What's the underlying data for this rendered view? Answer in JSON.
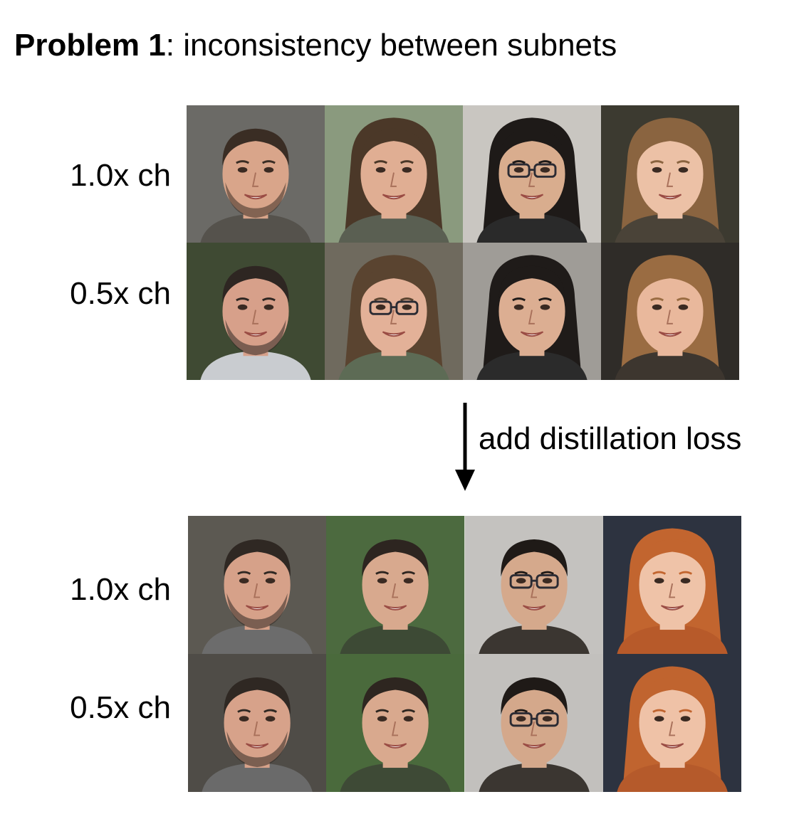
{
  "title": {
    "bold": "Problem 1",
    "rest": ": inconsistency between subnets"
  },
  "top_panel": {
    "rows": [
      {
        "label": "1.0x ch"
      },
      {
        "label": "0.5x ch"
      }
    ],
    "faces": [
      [
        {
          "bg": "#6b6a66",
          "skin": "#d9a58a",
          "hair": "#3a2d24",
          "shirt": "#55524c",
          "beard": true,
          "glasses": false,
          "longhair": false
        },
        {
          "bg": "#8a9a7e",
          "skin": "#e0ae93",
          "hair": "#4b3828",
          "shirt": "#5a5f52",
          "beard": false,
          "glasses": false,
          "longhair": true
        },
        {
          "bg": "#c9c6c1",
          "skin": "#d9ad8e",
          "hair": "#1e1a18",
          "shirt": "#2a2a2a",
          "beard": false,
          "glasses": true,
          "longhair": true
        },
        {
          "bg": "#3c3a30",
          "skin": "#ecc1a6",
          "hair": "#8a6440",
          "shirt": "#4a4338",
          "beard": false,
          "glasses": false,
          "longhair": true
        }
      ],
      [
        {
          "bg": "#3f4a33",
          "skin": "#d7a08a",
          "hair": "#2e2622",
          "shirt": "#c9ccd0",
          "beard": true,
          "glasses": false,
          "longhair": false
        },
        {
          "bg": "#6f6a5e",
          "skin": "#e3b198",
          "hair": "#5a4430",
          "shirt": "#5d6b55",
          "beard": false,
          "glasses": true,
          "longhair": true
        },
        {
          "bg": "#9f9c97",
          "skin": "#dcae92",
          "hair": "#1f1b19",
          "shirt": "#2b2b2b",
          "beard": false,
          "glasses": false,
          "longhair": true
        },
        {
          "bg": "#2f2c28",
          "skin": "#e9b89c",
          "hair": "#9a6c42",
          "shirt": "#3d362f",
          "beard": false,
          "glasses": false,
          "longhair": true
        }
      ]
    ]
  },
  "arrow_label": "add distillation loss",
  "bottom_panel": {
    "rows": [
      {
        "label": "1.0x ch"
      },
      {
        "label": "0.5x ch"
      }
    ],
    "faces": [
      [
        {
          "bg": "#5c5952",
          "skin": "#d6a189",
          "hair": "#2f2823",
          "shirt": "#6c6c6c",
          "beard": true,
          "glasses": false,
          "longhair": false
        },
        {
          "bg": "#4c6a3f",
          "skin": "#d8a98e",
          "hair": "#2d2520",
          "shirt": "#3d4a35",
          "beard": false,
          "glasses": false,
          "longhair": false
        },
        {
          "bg": "#c4c2bf",
          "skin": "#d5a98c",
          "hair": "#1f1a17",
          "shirt": "#3b3631",
          "beard": false,
          "glasses": true,
          "longhair": false
        },
        {
          "bg": "#2d3340",
          "skin": "#efc3a8",
          "hair": "#c2652f",
          "shirt": "#b75a2a",
          "beard": false,
          "glasses": false,
          "longhair": true
        }
      ],
      [
        {
          "bg": "#4f4c47",
          "skin": "#d7a28a",
          "hair": "#2f2823",
          "shirt": "#6a6a6a",
          "beard": true,
          "glasses": false,
          "longhair": false
        },
        {
          "bg": "#4a6a3c",
          "skin": "#d9a98e",
          "hair": "#2e2620",
          "shirt": "#3e4a36",
          "beard": false,
          "glasses": false,
          "longhair": false
        },
        {
          "bg": "#c2c0bd",
          "skin": "#d4a88b",
          "hair": "#1f1a17",
          "shirt": "#3b3631",
          "beard": false,
          "glasses": true,
          "longhair": false
        },
        {
          "bg": "#2d3340",
          "skin": "#efc2a7",
          "hair": "#c0642f",
          "shirt": "#b55a2b",
          "beard": false,
          "glasses": false,
          "longhair": true
        }
      ]
    ]
  }
}
